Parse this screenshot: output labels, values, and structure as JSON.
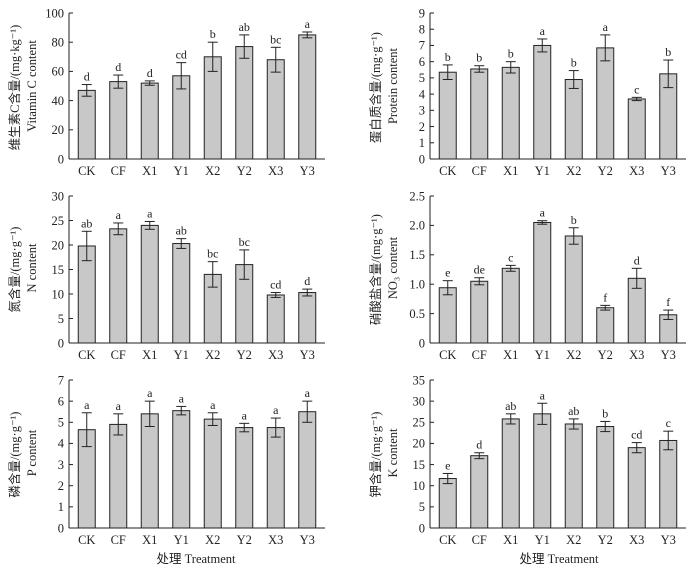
{
  "figure": {
    "xlabel_left": "处理 Treatment",
    "xlabel_right": "处理 Treatment"
  },
  "chart_data": [
    {
      "id": "vitc",
      "type": "bar",
      "ylabel_cn": "维生素C含量/(mg·kg⁻¹)",
      "ylabel_en": "Vitamin C content",
      "ylim": [
        0,
        100
      ],
      "yticks": [
        "0",
        "20",
        "40",
        "60",
        "80",
        "100"
      ],
      "categories": [
        "CK",
        "CF",
        "X1",
        "Y1",
        "X2",
        "Y2",
        "X3",
        "Y3"
      ],
      "values": [
        47,
        53,
        52,
        57,
        70,
        77,
        68,
        85
      ],
      "errors": [
        4,
        4.5,
        1.5,
        9,
        10,
        8,
        8.5,
        2
      ],
      "letters": [
        "d",
        "d",
        "d",
        "cd",
        "b",
        "ab",
        "bc",
        "a"
      ]
    },
    {
      "id": "protein",
      "type": "bar",
      "ylabel_cn": "蛋白质含量/(mg·g⁻¹)",
      "ylabel_en": "Protein content",
      "ylim": [
        0,
        9
      ],
      "yticks": [
        "0",
        "1",
        "2",
        "3",
        "4",
        "5",
        "6",
        "7",
        "8",
        "9"
      ],
      "categories": [
        "CK",
        "CF",
        "X1",
        "Y1",
        "X2",
        "Y2",
        "X3",
        "Y3"
      ],
      "values": [
        5.35,
        5.55,
        5.65,
        7.0,
        4.9,
        6.85,
        3.7,
        5.25
      ],
      "errors": [
        0.45,
        0.2,
        0.35,
        0.4,
        0.55,
        0.8,
        0.1,
        0.85
      ],
      "letters": [
        "b",
        "b",
        "b",
        "a",
        "b",
        "a",
        "c",
        "b"
      ]
    },
    {
      "id": "nitrogen",
      "type": "bar",
      "ylabel_cn": "氮含量/(mg·g⁻¹)",
      "ylabel_en": "N content",
      "ylim": [
        0,
        30
      ],
      "yticks": [
        "0",
        "5",
        "10",
        "15",
        "20",
        "25",
        "30"
      ],
      "categories": [
        "CK",
        "CF",
        "X1",
        "Y1",
        "X2",
        "Y2",
        "X3",
        "Y3"
      ],
      "values": [
        19.8,
        23.3,
        24.0,
        20.3,
        14.0,
        16.0,
        9.8,
        10.3
      ],
      "errors": [
        3.0,
        1.2,
        0.8,
        1.0,
        2.6,
        3.0,
        0.5,
        0.7
      ],
      "letters": [
        "ab",
        "a",
        "a",
        "ab",
        "bc",
        "bc",
        "cd",
        "d"
      ]
    },
    {
      "id": "nitrate",
      "type": "bar",
      "ylabel_cn": "硝酸盐含量/(mg·g⁻¹)",
      "ylabel_en": "NO₃ content",
      "ylim": [
        0,
        2.5
      ],
      "yticks": [
        "0",
        "0.5",
        "1.0",
        "1.5",
        "2.0",
        "2.5"
      ],
      "categories": [
        "CK",
        "CF",
        "X1",
        "Y1",
        "X2",
        "Y2",
        "X3",
        "Y3"
      ],
      "values": [
        0.94,
        1.05,
        1.27,
        2.05,
        1.82,
        0.6,
        1.1,
        0.48
      ],
      "errors": [
        0.12,
        0.06,
        0.05,
        0.03,
        0.14,
        0.04,
        0.17,
        0.08
      ],
      "letters": [
        "e",
        "de",
        "c",
        "a",
        "b",
        "f",
        "d",
        "f"
      ]
    },
    {
      "id": "phosphorus",
      "type": "bar",
      "ylabel_cn": "磷含量/(mg·g⁻¹)",
      "ylabel_en": "P content",
      "ylim": [
        0,
        7
      ],
      "yticks": [
        "0",
        "1",
        "2",
        "3",
        "4",
        "5",
        "6",
        "7"
      ],
      "categories": [
        "CK",
        "CF",
        "X1",
        "Y1",
        "X2",
        "Y2",
        "X3",
        "Y3"
      ],
      "values": [
        4.65,
        4.9,
        5.4,
        5.55,
        5.15,
        4.75,
        4.75,
        5.5
      ],
      "errors": [
        0.8,
        0.5,
        0.6,
        0.2,
        0.3,
        0.2,
        0.45,
        0.5
      ],
      "letters": [
        "a",
        "a",
        "a",
        "a",
        "a",
        "a",
        "a",
        "a"
      ]
    },
    {
      "id": "potassium",
      "type": "bar",
      "ylabel_cn": "钾含量/(mg·g⁻¹)",
      "ylabel_en": "K content",
      "ylim": [
        0,
        35
      ],
      "yticks": [
        "0",
        "5",
        "10",
        "15",
        "20",
        "25",
        "30",
        "35"
      ],
      "categories": [
        "CK",
        "CF",
        "X1",
        "Y1",
        "X2",
        "Y2",
        "X3",
        "Y3"
      ],
      "values": [
        11.7,
        17.1,
        25.8,
        27.0,
        24.6,
        24.0,
        19.0,
        20.7
      ],
      "errors": [
        1.2,
        0.7,
        1.2,
        2.5,
        1.2,
        1.2,
        1.2,
        2.2
      ],
      "letters": [
        "e",
        "d",
        "ab",
        "a",
        "ab",
        "b",
        "cd",
        "c"
      ]
    }
  ]
}
